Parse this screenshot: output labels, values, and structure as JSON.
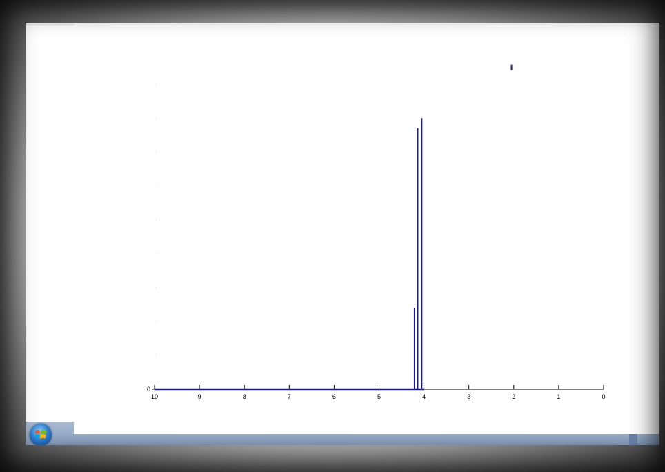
{
  "chart_data": {
    "type": "line",
    "title": "",
    "xlabel": "",
    "ylabel": "",
    "xlim": [
      10,
      0
    ],
    "x_reversed": true,
    "x_ticks": [
      "10",
      "9",
      "8",
      "7",
      "6",
      "5",
      "4",
      "3",
      "2",
      "1",
      "0"
    ],
    "y_ticks": [
      "0"
    ],
    "grid": false,
    "series": [
      {
        "color": "#1a1a8c",
        "peaks": [
          {
            "x": 4.21,
            "height": 0.24
          },
          {
            "x": 4.14,
            "height": 0.77
          },
          {
            "x": 4.05,
            "height": 0.8
          },
          {
            "x": 2.05,
            "height": 0.1,
            "floating": true
          }
        ],
        "baseline_end": 4.0
      }
    ]
  },
  "taskbar": {
    "start_button": "start-orb-icon"
  }
}
